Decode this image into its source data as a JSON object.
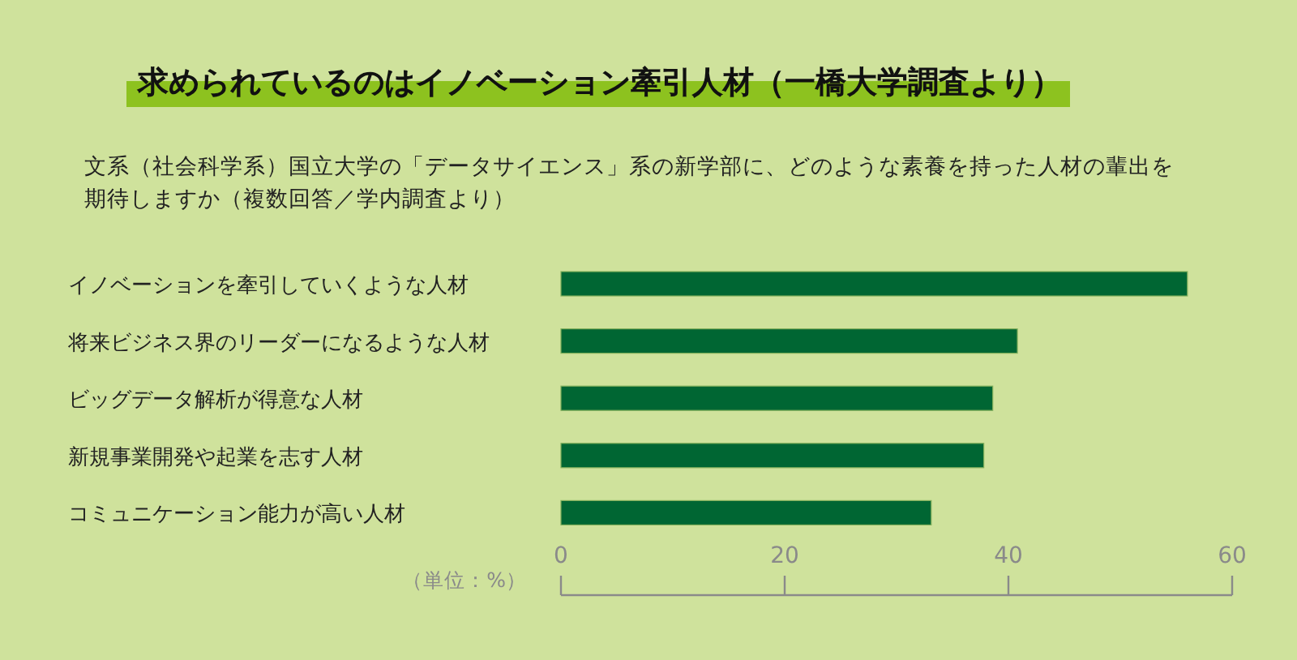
{
  "chart_data": {
    "type": "bar",
    "orientation": "horizontal",
    "title": "求められているのはイノベーション牽引人材（一橋大学調査より）",
    "subtitle": "文系（社会科学系）国立大学の「データサイエンス」系の新学部に、どのような素養を持った人材の輩出を期待しますか（複数回答／学内調査より）",
    "categories": [
      "イノベーションを牽引していくような人材",
      "将来ビジネス界のリーダーになるような人材",
      "ビッグデータ解析が得意な人材",
      "新規事業開発や起業を志す人材",
      "コミュニケーション能力が高い人材"
    ],
    "values": [
      56,
      40.8,
      38.6,
      37.8,
      33.1
    ],
    "color": "#006633",
    "xlim": [
      0,
      60
    ],
    "xticks": [
      0,
      20,
      40,
      60
    ],
    "annotations": [
      "（単位：%）"
    ]
  }
}
